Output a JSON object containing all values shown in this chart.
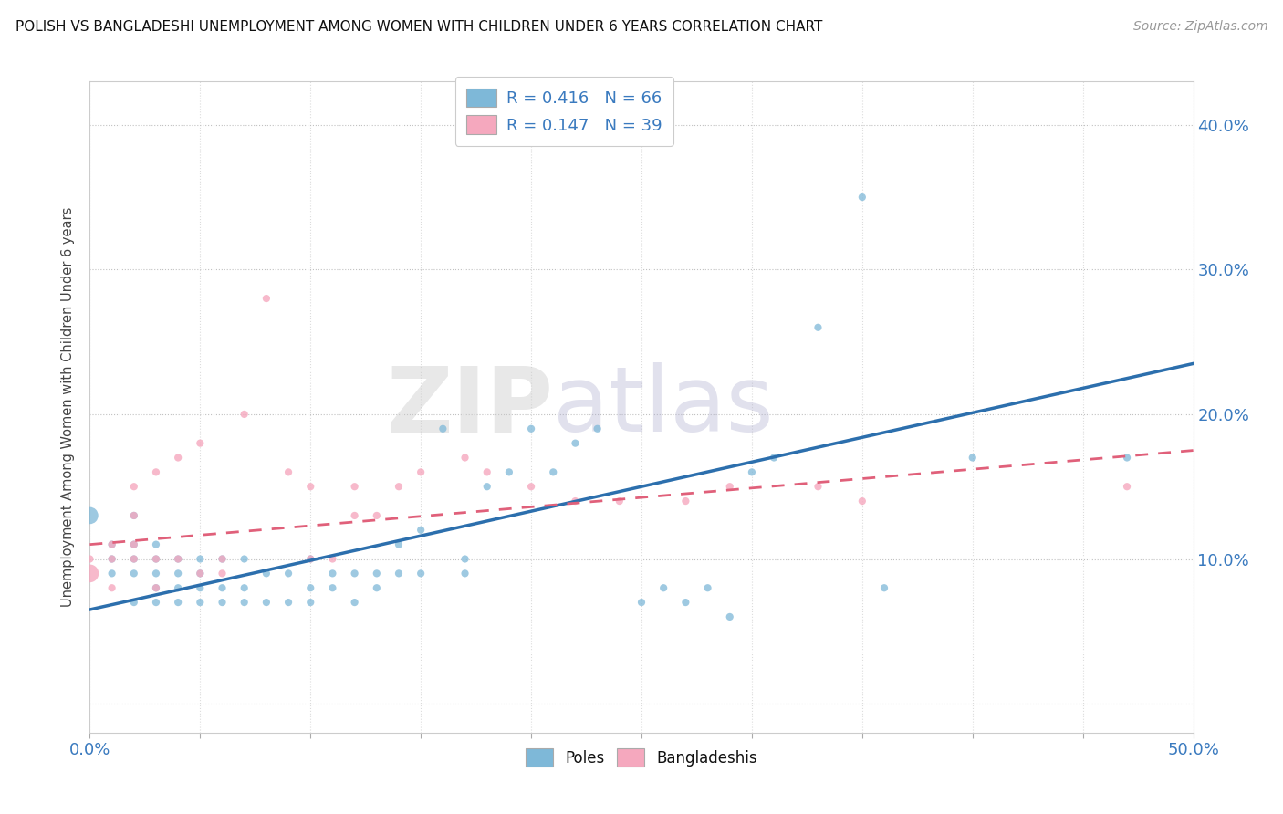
{
  "title": "POLISH VS BANGLADESHI UNEMPLOYMENT AMONG WOMEN WITH CHILDREN UNDER 6 YEARS CORRELATION CHART",
  "source": "Source: ZipAtlas.com",
  "ylabel": "Unemployment Among Women with Children Under 6 years",
  "xlim": [
    0.0,
    0.5
  ],
  "ylim": [
    -0.02,
    0.43
  ],
  "xticks": [
    0.0,
    0.05,
    0.1,
    0.15,
    0.2,
    0.25,
    0.3,
    0.35,
    0.4,
    0.45,
    0.5
  ],
  "ytick_positions": [
    0.0,
    0.1,
    0.2,
    0.3,
    0.4
  ],
  "ytick_labels": [
    "",
    "10.0%",
    "20.0%",
    "30.0%",
    "40.0%"
  ],
  "blue_color": "#7eb8d8",
  "pink_color": "#f5a8be",
  "blue_line_color": "#2c6fad",
  "pink_line_color": "#e0607a",
  "legend_R_blue": "R = 0.416",
  "legend_N_blue": "N = 66",
  "legend_R_pink": "R = 0.147",
  "legend_N_pink": "N = 39",
  "blue_trend_x0": 0.0,
  "blue_trend_y0": 0.065,
  "blue_trend_x1": 0.5,
  "blue_trend_y1": 0.235,
  "pink_trend_x0": 0.0,
  "pink_trend_y0": 0.11,
  "pink_trend_x1": 0.5,
  "pink_trend_y1": 0.175,
  "poles_scatter_x": [
    0.0,
    0.01,
    0.01,
    0.01,
    0.02,
    0.02,
    0.02,
    0.02,
    0.02,
    0.03,
    0.03,
    0.03,
    0.03,
    0.03,
    0.04,
    0.04,
    0.04,
    0.04,
    0.05,
    0.05,
    0.05,
    0.05,
    0.06,
    0.06,
    0.06,
    0.07,
    0.07,
    0.07,
    0.08,
    0.08,
    0.09,
    0.09,
    0.1,
    0.1,
    0.1,
    0.11,
    0.11,
    0.12,
    0.12,
    0.13,
    0.13,
    0.14,
    0.14,
    0.15,
    0.15,
    0.16,
    0.17,
    0.17,
    0.18,
    0.19,
    0.2,
    0.21,
    0.22,
    0.23,
    0.25,
    0.26,
    0.27,
    0.28,
    0.29,
    0.3,
    0.31,
    0.33,
    0.35,
    0.36,
    0.4,
    0.47
  ],
  "poles_scatter_y": [
    0.13,
    0.09,
    0.1,
    0.11,
    0.07,
    0.09,
    0.1,
    0.11,
    0.13,
    0.07,
    0.08,
    0.09,
    0.1,
    0.11,
    0.07,
    0.08,
    0.09,
    0.1,
    0.07,
    0.08,
    0.09,
    0.1,
    0.07,
    0.08,
    0.1,
    0.07,
    0.08,
    0.1,
    0.07,
    0.09,
    0.07,
    0.09,
    0.07,
    0.08,
    0.1,
    0.08,
    0.09,
    0.07,
    0.09,
    0.08,
    0.09,
    0.09,
    0.11,
    0.09,
    0.12,
    0.19,
    0.09,
    0.1,
    0.15,
    0.16,
    0.19,
    0.16,
    0.18,
    0.19,
    0.07,
    0.08,
    0.07,
    0.08,
    0.06,
    0.16,
    0.17,
    0.26,
    0.35,
    0.08,
    0.17,
    0.17
  ],
  "bangla_scatter_x": [
    0.0,
    0.0,
    0.01,
    0.01,
    0.01,
    0.02,
    0.02,
    0.02,
    0.02,
    0.03,
    0.03,
    0.03,
    0.04,
    0.04,
    0.05,
    0.05,
    0.06,
    0.06,
    0.07,
    0.08,
    0.09,
    0.1,
    0.1,
    0.11,
    0.12,
    0.12,
    0.13,
    0.14,
    0.15,
    0.17,
    0.18,
    0.2,
    0.22,
    0.24,
    0.27,
    0.29,
    0.33,
    0.35,
    0.47
  ],
  "bangla_scatter_y": [
    0.09,
    0.1,
    0.08,
    0.1,
    0.11,
    0.1,
    0.11,
    0.13,
    0.15,
    0.08,
    0.1,
    0.16,
    0.1,
    0.17,
    0.09,
    0.18,
    0.09,
    0.1,
    0.2,
    0.28,
    0.16,
    0.1,
    0.15,
    0.1,
    0.13,
    0.15,
    0.13,
    0.15,
    0.16,
    0.17,
    0.16,
    0.15,
    0.14,
    0.14,
    0.14,
    0.15,
    0.15,
    0.14,
    0.15
  ],
  "blue_large_dot_idx": 0,
  "pink_large_dot_idx": 0
}
